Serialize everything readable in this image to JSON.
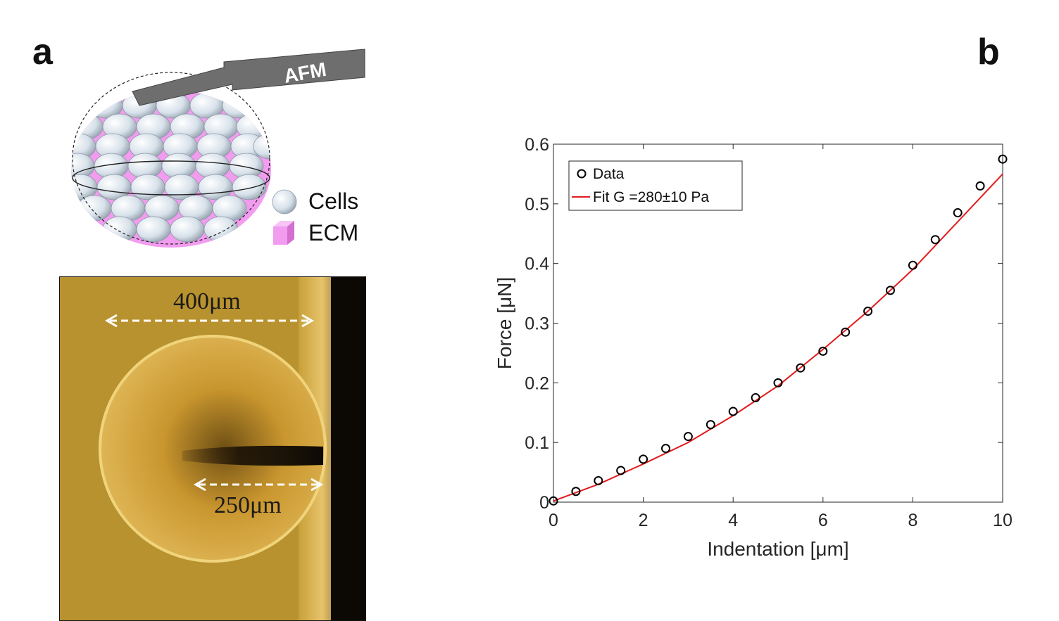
{
  "panel_labels": {
    "a": "a",
    "b": "b"
  },
  "schematic": {
    "probe_label": "AFM",
    "legend_cells": "Cells",
    "legend_ecm": "ECM",
    "colors": {
      "cells": "#dfe8f0",
      "ecm": "#f29cf0",
      "probe": "#6e6e6e"
    }
  },
  "micrograph": {
    "scale_top": "400μm",
    "scale_bottom": "250μm",
    "colors": {
      "background": "#b8922e",
      "spheroid": "#d9ae4a",
      "dark": "#0c0905"
    }
  },
  "chart_data": {
    "type": "scatter",
    "xlabel": "Indentation [μm]",
    "ylabel": "Force [μN]",
    "xlim": [
      0,
      10
    ],
    "ylim": [
      0,
      0.6
    ],
    "xticks": [
      "0",
      "2",
      "4",
      "6",
      "8",
      "10"
    ],
    "yticks": [
      "0",
      "0.1",
      "0.2",
      "0.3",
      "0.4",
      "0.5",
      "0.6"
    ],
    "legend_position": "top-left",
    "grid": false,
    "series": [
      {
        "name": "Data",
        "kind": "markers",
        "marker": "open-circle",
        "color": "#000000",
        "x": [
          0,
          0.5,
          1,
          1.5,
          2,
          2.5,
          3,
          3.5,
          4,
          4.5,
          5,
          5.5,
          6,
          6.5,
          7,
          7.5,
          8,
          8.5,
          9,
          9.5,
          10
        ],
        "y": [
          0.002,
          0.018,
          0.036,
          0.053,
          0.072,
          0.09,
          0.11,
          0.13,
          0.152,
          0.175,
          0.2,
          0.225,
          0.253,
          0.285,
          0.32,
          0.355,
          0.397,
          0.44,
          0.485,
          0.53,
          0.575
        ]
      },
      {
        "name": "Fit G =280±10 Pa",
        "kind": "line",
        "color": "#e31a1c",
        "x": [
          0,
          1,
          2,
          3,
          4,
          5,
          6,
          7,
          8,
          9,
          10
        ],
        "y": [
          0.002,
          0.03,
          0.064,
          0.1,
          0.145,
          0.195,
          0.256,
          0.32,
          0.39,
          0.47,
          0.55
        ]
      }
    ]
  }
}
